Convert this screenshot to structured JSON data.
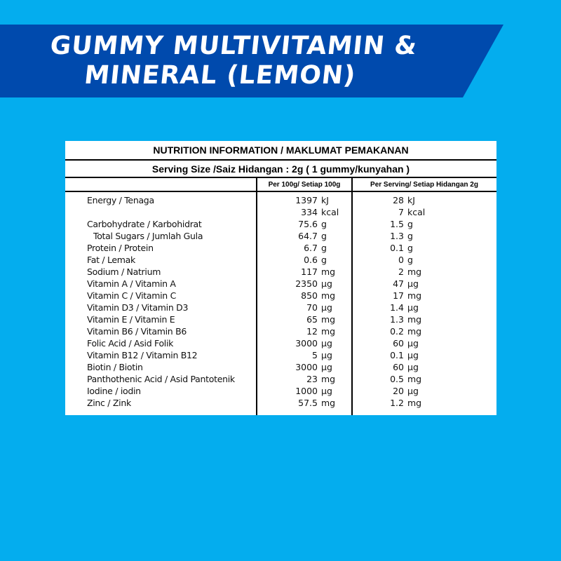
{
  "banner": {
    "title_line1": "Gummy Multivitamin &",
    "title_line2": "Mineral (Lemon)",
    "bg_color": "#004AAD"
  },
  "page": {
    "bg_color": "#04ADEE"
  },
  "nutrition_table": {
    "title": "NUTRITION INFORMATION / MAKLUMAT PEMAKANAN",
    "serving_size": "Serving Size /Saiz Hidangan : 2g ( 1 gummy/kunyahan )",
    "columns": [
      "",
      "Per 100g/ Setiap 100g",
      "Per Serving/ Setiap Hidangan 2g"
    ],
    "rows": [
      {
        "name": "Energy / Tenaga",
        "per100": "1397",
        "per100_unit": "kJ",
        "perServing": "28",
        "perServing_unit": "kJ"
      },
      {
        "name": "",
        "per100": "334",
        "per100_unit": "kcal",
        "perServing": "7",
        "perServing_unit": "kcal"
      },
      {
        "name": "Carbohydrate / Karbohidrat",
        "per100": "75.6",
        "per100_unit": "g",
        "perServing": "1.5",
        "perServing_unit": "g"
      },
      {
        "name": "Total Sugars / Jumlah Gula",
        "indent": true,
        "per100": "64.7",
        "per100_unit": "g",
        "perServing": "1.3",
        "perServing_unit": "g"
      },
      {
        "name": "Protein / Protein",
        "per100": "6.7",
        "per100_unit": "g",
        "perServing": "0.1",
        "perServing_unit": "g"
      },
      {
        "name": "Fat / Lemak",
        "per100": "0.6",
        "per100_unit": "g",
        "perServing": "0",
        "perServing_unit": "g"
      },
      {
        "name": "Sodium / Natrium",
        "per100": "117",
        "per100_unit": "mg",
        "perServing": "2",
        "perServing_unit": "mg"
      },
      {
        "name": "Vitamin A / Vitamin A",
        "per100": "2350",
        "per100_unit": "µg",
        "perServing": "47",
        "perServing_unit": "µg"
      },
      {
        "name": "Vitamin C / Vitamin C",
        "per100": "850",
        "per100_unit": "mg",
        "perServing": "17",
        "perServing_unit": "mg"
      },
      {
        "name": "Vitamin D3 / Vitamin D3",
        "per100": "70",
        "per100_unit": "µg",
        "perServing": "1.4",
        "perServing_unit": "µg"
      },
      {
        "name": "Vitamin E / Vitamin E",
        "per100": "65",
        "per100_unit": "mg",
        "perServing": "1.3",
        "perServing_unit": "mg"
      },
      {
        "name": "Vitamin B6 / Vitamin B6",
        "per100": "12",
        "per100_unit": "mg",
        "perServing": "0.2",
        "perServing_unit": "mg"
      },
      {
        "name": "Folic Acid / Asid Folik",
        "per100": "3000",
        "per100_unit": "µg",
        "perServing": "60",
        "perServing_unit": "µg"
      },
      {
        "name": "Vitamin B12 / Vitamin B12",
        "per100": "5",
        "per100_unit": "µg",
        "perServing": "0.1",
        "perServing_unit": "µg"
      },
      {
        "name": "Biotin / Biotin",
        "per100": "3000",
        "per100_unit": "µg",
        "perServing": "60",
        "perServing_unit": "µg"
      },
      {
        "name": "Panthothenic Acid / Asid Pantotenik",
        "per100": "23",
        "per100_unit": "mg",
        "perServing": "0.5",
        "perServing_unit": "mg"
      },
      {
        "name": "Iodine / iodin",
        "per100": "1000",
        "per100_unit": "µg",
        "perServing": "20",
        "perServing_unit": "µg"
      },
      {
        "name": "Zinc / Zink",
        "per100": "57.5",
        "per100_unit": "mg",
        "perServing": "1.2",
        "perServing_unit": "mg"
      }
    ]
  }
}
